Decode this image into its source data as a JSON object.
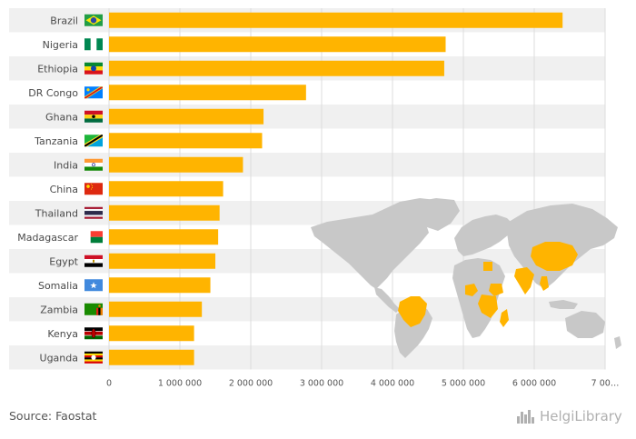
{
  "source_text": "Source: Faostat",
  "brand": "HelgiLibrary",
  "colors": {
    "bar": "#FFB400",
    "band": "#F0F0F0",
    "map_land": "#C8C8C8",
    "map_highlight": "#FFB400",
    "grid": "#DDDDDD"
  },
  "chart_data": {
    "type": "bar",
    "orientation": "horizontal",
    "categories": [
      "Brazil",
      "Nigeria",
      "Ethiopia",
      "DR Congo",
      "Ghana",
      "Tanzania",
      "India",
      "China",
      "Thailand",
      "Madagascar",
      "Egypt",
      "Somalia",
      "Zambia",
      "Kenya",
      "Uganda"
    ],
    "values": [
      6400000,
      4750000,
      4730000,
      2780000,
      2180000,
      2160000,
      1890000,
      1610000,
      1560000,
      1540000,
      1500000,
      1430000,
      1310000,
      1200000,
      1200000
    ],
    "x_ticks": [
      "0",
      "1 000 000",
      "2 000 000",
      "3 000 000",
      "4 000 000",
      "5 000 000",
      "6 000 000",
      "7 00…"
    ],
    "x_tick_values": [
      0,
      1000000,
      2000000,
      3000000,
      4000000,
      5000000,
      6000000,
      7000000
    ],
    "xlim": [
      0,
      7000000
    ],
    "grid": true,
    "flags": [
      "brazil-flag-icon",
      "nigeria-flag-icon",
      "ethiopia-flag-icon",
      "dr-congo-flag-icon",
      "ghana-flag-icon",
      "tanzania-flag-icon",
      "india-flag-icon",
      "china-flag-icon",
      "thailand-flag-icon",
      "madagascar-flag-icon",
      "egypt-flag-icon",
      "somalia-flag-icon",
      "zambia-flag-icon",
      "kenya-flag-icon",
      "uganda-flag-icon"
    ]
  }
}
